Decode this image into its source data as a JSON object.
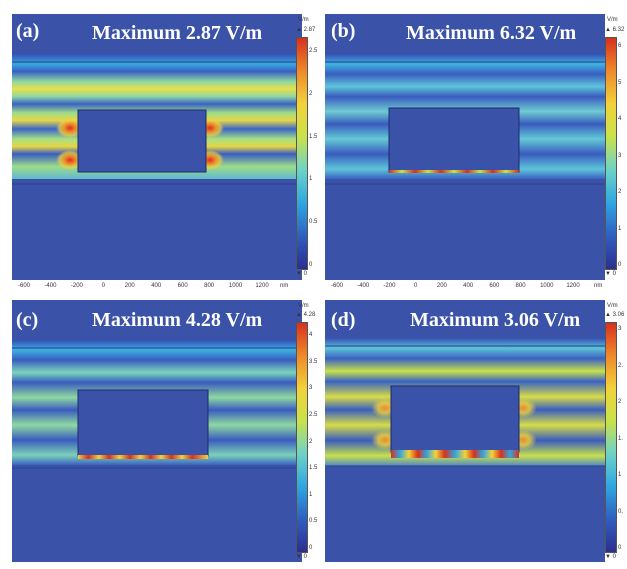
{
  "colors": {
    "background": "#3a53a8",
    "colorbar": [
      "#2b2e8f",
      "#2f5fc0",
      "#2fa6e0",
      "#6dd3c7",
      "#c8e24a",
      "#f2d23a",
      "#ee8a2a",
      "#d7301f"
    ]
  },
  "panels": [
    {
      "id": "a",
      "label": "(a)",
      "maximum_text": "Maximum 2.87 V/m",
      "colorbar": {
        "unit": "V/m",
        "max": "▲ 2.87",
        "min": "▼ 0",
        "ticks": [
          "2.5",
          "2",
          "1.5",
          "1",
          "0.5",
          "0"
        ]
      },
      "x_ticks": [
        "-600",
        "-400",
        "-200",
        "0",
        "200",
        "400",
        "600",
        "800",
        "1000",
        "1200"
      ],
      "x_unit": "nm"
    },
    {
      "id": "b",
      "label": "(b)",
      "maximum_text": "Maximum 6.32 V/m",
      "colorbar": {
        "unit": "V/m",
        "max": "▲ 6.32",
        "min": "▼ 0",
        "ticks": [
          "6",
          "5",
          "4",
          "3",
          "2",
          "1",
          "0"
        ]
      },
      "x_ticks": [
        "-600",
        "-400",
        "-200",
        "0",
        "200",
        "400",
        "600",
        "800",
        "1000",
        "1200"
      ],
      "x_unit": "nm"
    },
    {
      "id": "c",
      "label": "(c)",
      "maximum_text": "Maximum 4.28 V/m",
      "colorbar": {
        "unit": "V/m",
        "max": "▲ 4.28",
        "min": "▼ 0",
        "ticks": [
          "4",
          "3.5",
          "3",
          "2.5",
          "2",
          "1.5",
          "1",
          "0.5",
          "0"
        ]
      }
    },
    {
      "id": "d",
      "label": "(d)",
      "maximum_text": "Maximum 3.06 V/m",
      "colorbar": {
        "unit": "V/m",
        "max": "▲ 3.06",
        "min": "▼ 0",
        "ticks": [
          "3",
          "2.",
          "2",
          "1.",
          "1",
          "0.",
          "0"
        ]
      }
    }
  ]
}
